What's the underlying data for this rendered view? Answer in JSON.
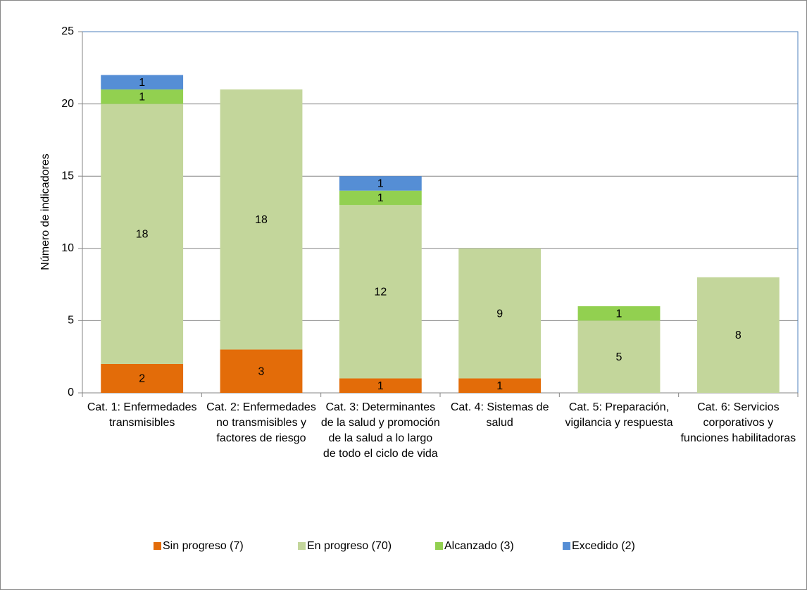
{
  "chart_data": {
    "type": "stacked_bar",
    "y_label": "Número de indicadores",
    "categories": [
      "Cat. 1: Enfermedades transmisibles",
      "Cat. 2: Enfermedades no transmisibles y factores de riesgo",
      "Cat. 3: Determinantes de la salud y promoción de la salud a lo largo de todo el ciclo de vida",
      "Cat. 4: Sistemas de salud",
      "Cat. 5: Preparación, vigilancia y respuesta",
      "Cat. 6: Servicios corporativos y funciones habilitadoras"
    ],
    "series": [
      {
        "name": "Sin progreso (7)",
        "color": "#e36c09",
        "values": [
          2,
          3,
          1,
          1,
          0,
          0
        ]
      },
      {
        "name": "En progreso (70)",
        "color": "#c3d69b",
        "values": [
          18,
          18,
          12,
          9,
          5,
          8
        ]
      },
      {
        "name": "Alcanzado (3)",
        "color": "#92d050",
        "values": [
          1,
          0,
          1,
          0,
          1,
          0
        ]
      },
      {
        "name": "Excedido (2)",
        "color": "#558ed5",
        "values": [
          1,
          0,
          1,
          0,
          0,
          0
        ]
      }
    ],
    "ylim": [
      0,
      25
    ],
    "yticks": [
      0,
      5,
      10,
      15,
      20,
      25
    ],
    "grid": true,
    "legend": "bottom"
  }
}
